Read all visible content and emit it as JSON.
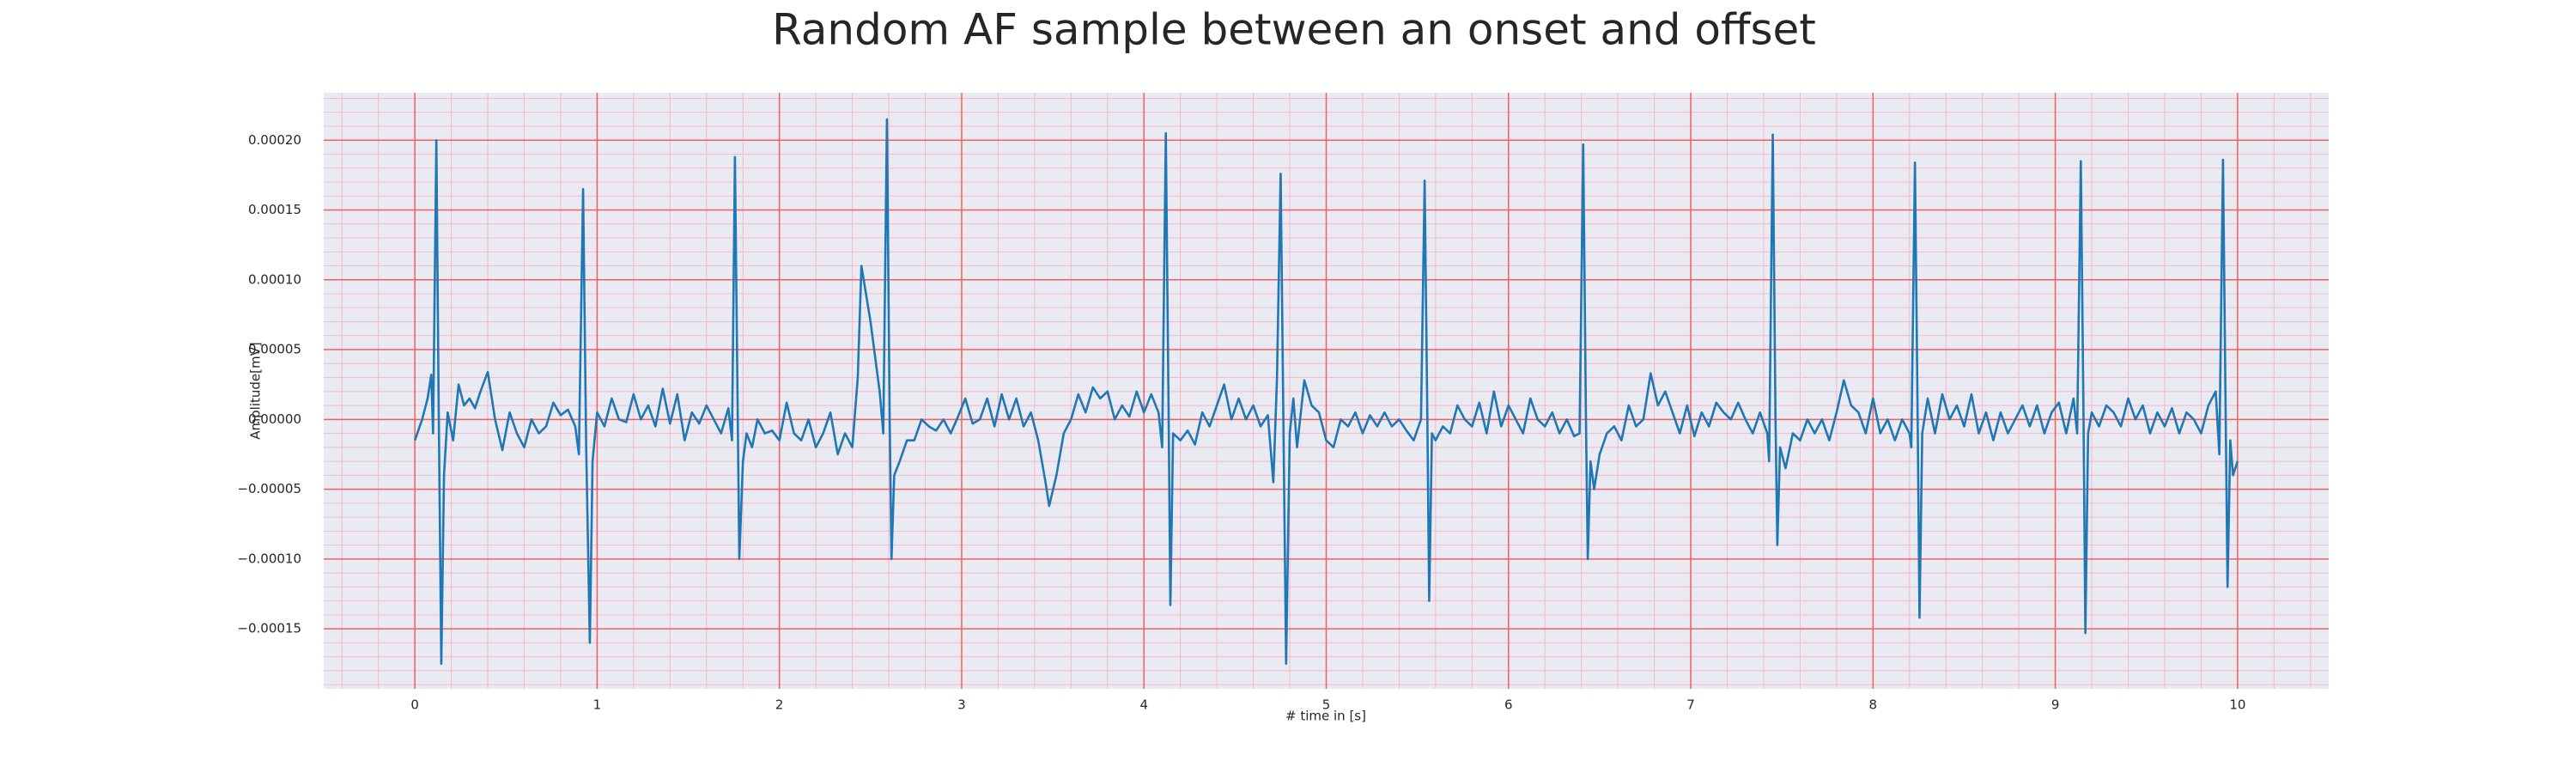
{
  "chart_data": {
    "type": "line",
    "title": "Random AF sample between an onset and offset",
    "xlabel": "# time in [s]",
    "ylabel": "Amplitude[mV]",
    "color": "#1f77b4",
    "grid": true,
    "xlim": [
      -0.5,
      10.5
    ],
    "ylim": [
      -0.000193,
      0.000234
    ],
    "xticks": [
      0,
      1,
      2,
      3,
      4,
      5,
      6,
      7,
      8,
      9,
      10
    ],
    "yticks": [
      {
        "value": -0.00015,
        "label": "−0.00015"
      },
      {
        "value": -0.0001,
        "label": "−0.00010"
      },
      {
        "value": -5e-05,
        "label": "−0.00005"
      },
      {
        "value": 0,
        "label": "0.00000"
      },
      {
        "value": 5e-05,
        "label": "0.00005"
      },
      {
        "value": 0.0001,
        "label": "0.00010"
      },
      {
        "value": 0.00015,
        "label": "0.00015"
      },
      {
        "value": 0.0002,
        "label": "0.00020"
      }
    ],
    "xminorticks": [
      -0.4,
      -0.2,
      0.2,
      0.4,
      0.6,
      0.8,
      1.2,
      1.4,
      1.6,
      1.8,
      2.2,
      2.4,
      2.6,
      2.8,
      3.2,
      3.4,
      3.6,
      3.8,
      4.2,
      4.4,
      4.6,
      4.8,
      5.2,
      5.4,
      5.6,
      5.8,
      6.2,
      6.4,
      6.6,
      6.8,
      7.2,
      7.4,
      7.6,
      7.8,
      8.2,
      8.4,
      8.6,
      8.8,
      9.2,
      9.4,
      9.6,
      9.8,
      10.2,
      10.4
    ],
    "yminorticks": [
      -0.00019,
      -0.00018,
      -0.00017,
      -0.00016,
      -0.00014,
      -0.00013,
      -0.00012,
      -0.00011,
      -9e-05,
      -8e-05,
      -7e-05,
      -6e-05,
      -4e-05,
      -3e-05,
      -2e-05,
      -1e-05,
      1e-05,
      2e-05,
      3e-05,
      4e-05,
      6e-05,
      7e-05,
      8e-05,
      9e-05,
      0.00011,
      0.00012,
      0.00013,
      0.00014,
      0.00016,
      0.00017,
      0.00018,
      0.00019,
      0.00021,
      0.00022,
      0.00023
    ],
    "x": [
      0,
      0.04,
      0.07,
      0.09,
      0.1,
      0.118,
      0.13,
      0.145,
      0.16,
      0.18,
      0.21,
      0.24,
      0.27,
      0.3,
      0.33,
      0.36,
      0.4,
      0.44,
      0.48,
      0.52,
      0.56,
      0.6,
      0.64,
      0.68,
      0.72,
      0.76,
      0.8,
      0.84,
      0.88,
      0.9,
      0.923,
      0.94,
      0.96,
      0.975,
      1.0,
      1.04,
      1.08,
      1.12,
      1.16,
      1.2,
      1.24,
      1.28,
      1.32,
      1.36,
      1.4,
      1.44,
      1.48,
      1.52,
      1.56,
      1.6,
      1.64,
      1.68,
      1.72,
      1.74,
      1.756,
      1.77,
      1.78,
      1.8,
      1.82,
      1.85,
      1.88,
      1.92,
      1.96,
      2.0,
      2.04,
      2.08,
      2.12,
      2.16,
      2.2,
      2.24,
      2.28,
      2.32,
      2.36,
      2.4,
      2.43,
      2.45,
      2.5,
      2.55,
      2.57,
      2.59,
      2.605,
      2.615,
      2.63,
      2.66,
      2.7,
      2.74,
      2.78,
      2.82,
      2.86,
      2.9,
      2.94,
      2.98,
      3.02,
      3.06,
      3.1,
      3.14,
      3.18,
      3.22,
      3.26,
      3.3,
      3.34,
      3.38,
      3.42,
      3.46,
      3.48,
      3.52,
      3.56,
      3.6,
      3.64,
      3.68,
      3.72,
      3.76,
      3.8,
      3.84,
      3.88,
      3.92,
      3.96,
      4.0,
      4.04,
      4.08,
      4.1,
      4.12,
      4.135,
      4.145,
      4.16,
      4.2,
      4.24,
      4.28,
      4.32,
      4.36,
      4.4,
      4.44,
      4.48,
      4.52,
      4.56,
      4.6,
      4.64,
      4.68,
      4.71,
      4.73,
      4.75,
      4.765,
      4.78,
      4.8,
      4.82,
      4.84,
      4.88,
      4.92,
      4.96,
      5.0,
      5.04,
      5.08,
      5.12,
      5.16,
      5.2,
      5.24,
      5.28,
      5.32,
      5.36,
      5.4,
      5.44,
      5.48,
      5.52,
      5.54,
      5.555,
      5.565,
      5.58,
      5.6,
      5.64,
      5.68,
      5.72,
      5.76,
      5.8,
      5.84,
      5.88,
      5.92,
      5.96,
      6.0,
      6.04,
      6.08,
      6.12,
      6.16,
      6.2,
      6.24,
      6.28,
      6.32,
      6.36,
      6.39,
      6.41,
      6.425,
      6.435,
      6.45,
      6.47,
      6.5,
      6.54,
      6.58,
      6.62,
      6.66,
      6.7,
      6.74,
      6.78,
      6.82,
      6.86,
      6.9,
      6.94,
      6.98,
      7.02,
      7.06,
      7.1,
      7.14,
      7.18,
      7.22,
      7.26,
      7.3,
      7.34,
      7.38,
      7.42,
      7.43,
      7.45,
      7.465,
      7.475,
      7.49,
      7.52,
      7.56,
      7.6,
      7.64,
      7.68,
      7.72,
      7.76,
      7.8,
      7.84,
      7.88,
      7.92,
      7.96,
      8.0,
      8.04,
      8.08,
      8.12,
      8.16,
      8.2,
      8.21,
      8.23,
      8.245,
      8.255,
      8.27,
      8.3,
      8.34,
      8.38,
      8.42,
      8.46,
      8.5,
      8.54,
      8.58,
      8.62,
      8.66,
      8.7,
      8.74,
      8.78,
      8.82,
      8.86,
      8.9,
      8.94,
      8.98,
      9.02,
      9.06,
      9.1,
      9.12,
      9.14,
      9.155,
      9.165,
      9.18,
      9.2,
      9.24,
      9.28,
      9.32,
      9.36,
      9.4,
      9.44,
      9.48,
      9.52,
      9.56,
      9.6,
      9.64,
      9.68,
      9.72,
      9.76,
      9.8,
      9.84,
      9.88,
      9.9,
      9.92,
      9.935,
      9.945,
      9.96,
      9.975,
      10.0
    ],
    "values": [
      -1.5e-05,
      0,
      1.5e-05,
      3.2e-05,
      -1e-05,
      0.0002,
      2e-05,
      -0.000175,
      -4e-05,
      5e-06,
      -1.5e-05,
      2.5e-05,
      1e-05,
      1.5e-05,
      8e-06,
      2e-05,
      3.4e-05,
      0,
      -2.2e-05,
      5e-06,
      -1e-05,
      -2e-05,
      0,
      -1e-05,
      -5e-06,
      1.2e-05,
      3e-06,
      7e-06,
      -5e-06,
      -2.5e-05,
      0.000165,
      -2e-05,
      -0.00016,
      -3e-05,
      5e-06,
      -5e-06,
      1.5e-05,
      0,
      -2e-06,
      1.8e-05,
      0,
      1e-05,
      -5e-06,
      2.2e-05,
      -3e-06,
      1.8e-05,
      -1.5e-05,
      5e-06,
      -3e-06,
      1e-05,
      0,
      -1e-05,
      8e-06,
      -1.5e-05,
      0.000188,
      2e-05,
      -0.0001,
      -3e-05,
      -1e-05,
      -2e-05,
      0,
      -1e-05,
      -8e-06,
      -1.5e-05,
      1.2e-05,
      -1e-05,
      -1.5e-05,
      0,
      -2e-05,
      -1e-05,
      5e-06,
      -2.5e-05,
      -1e-05,
      -2e-05,
      3e-05,
      0.00011,
      7e-05,
      2e-05,
      -1e-05,
      0.000215,
      0,
      -0.0001,
      -4e-05,
      -3e-05,
      -1.5e-05,
      -1.5e-05,
      0,
      -5e-06,
      -8e-06,
      0,
      -1e-05,
      2e-06,
      1.5e-05,
      -3e-06,
      0,
      1.5e-05,
      -5e-06,
      1.8e-05,
      0,
      1.5e-05,
      -5e-06,
      5e-06,
      -1.5e-05,
      -4.5e-05,
      -6.2e-05,
      -4e-05,
      -1e-05,
      0,
      1.8e-05,
      5e-06,
      2.3e-05,
      1.5e-05,
      2e-05,
      0,
      1e-05,
      2e-06,
      2e-05,
      5e-06,
      1.8e-05,
      5e-06,
      -2e-05,
      0.000205,
      1e-05,
      -0.000133,
      -1e-05,
      -1.5e-05,
      -8e-06,
      -1.8e-05,
      5e-06,
      -5e-06,
      1e-05,
      2.5e-05,
      0,
      1.5e-05,
      0,
      1e-05,
      -5e-06,
      3e-06,
      -4.5e-05,
      3e-05,
      0.000176,
      0,
      -0.000175,
      -1e-05,
      1.5e-05,
      -2e-05,
      2.8e-05,
      1e-05,
      5e-06,
      -1.5e-05,
      -2e-05,
      0,
      -5e-06,
      5e-06,
      -1e-05,
      3e-06,
      -5e-06,
      5e-06,
      -5e-06,
      0,
      -8e-06,
      -1.5e-05,
      0,
      0.000171,
      0,
      -0.00013,
      -1e-05,
      -1.5e-05,
      -5e-06,
      -1e-05,
      1e-05,
      0,
      -5e-06,
      1.2e-05,
      -1e-05,
      2e-05,
      -5e-06,
      1e-05,
      0,
      -1e-05,
      1.5e-05,
      0,
      -5e-06,
      5e-06,
      -1e-05,
      0,
      -1.2e-05,
      -1e-05,
      0.000197,
      0,
      -0.0001,
      -3e-05,
      -5e-05,
      -2.5e-05,
      -1e-05,
      -5e-06,
      -1.5e-05,
      1e-05,
      -5e-06,
      0,
      3.3e-05,
      1e-05,
      2e-05,
      5e-06,
      -1e-05,
      1e-05,
      -1.2e-05,
      5e-06,
      -5e-06,
      1.2e-05,
      5e-06,
      0,
      1.2e-05,
      0,
      -1e-05,
      5e-06,
      -1e-05,
      -3e-05,
      0.000204,
      0,
      -9e-05,
      -2e-05,
      -3.5e-05,
      -1e-05,
      -1.5e-05,
      0,
      -1e-05,
      0,
      -1.5e-05,
      5e-06,
      2.8e-05,
      1e-05,
      5e-06,
      -1e-05,
      1.5e-05,
      -1e-05,
      0,
      -1.5e-05,
      0,
      -1e-05,
      -2e-05,
      0.000184,
      0,
      -0.000142,
      -1e-05,
      1.5e-05,
      -1e-05,
      1.8e-05,
      0,
      1e-05,
      -5e-06,
      1.8e-05,
      -1e-05,
      5e-06,
      -1.5e-05,
      5e-06,
      -1e-05,
      0,
      1e-05,
      -5e-06,
      1e-05,
      -1e-05,
      5e-06,
      1.2e-05,
      -1e-05,
      1.5e-05,
      -1e-05,
      0.000185,
      0,
      -0.000153,
      -1e-05,
      5e-06,
      -5e-06,
      1e-05,
      5e-06,
      -5e-06,
      1.5e-05,
      0,
      1e-05,
      -1e-05,
      5e-06,
      -5e-06,
      8e-06,
      -1e-05,
      5e-06,
      0,
      -1e-05,
      1e-05,
      2e-05,
      -2.5e-05,
      0.000186,
      0,
      -0.00012,
      -1.5e-05,
      -4e-05,
      -3e-05
    ]
  }
}
